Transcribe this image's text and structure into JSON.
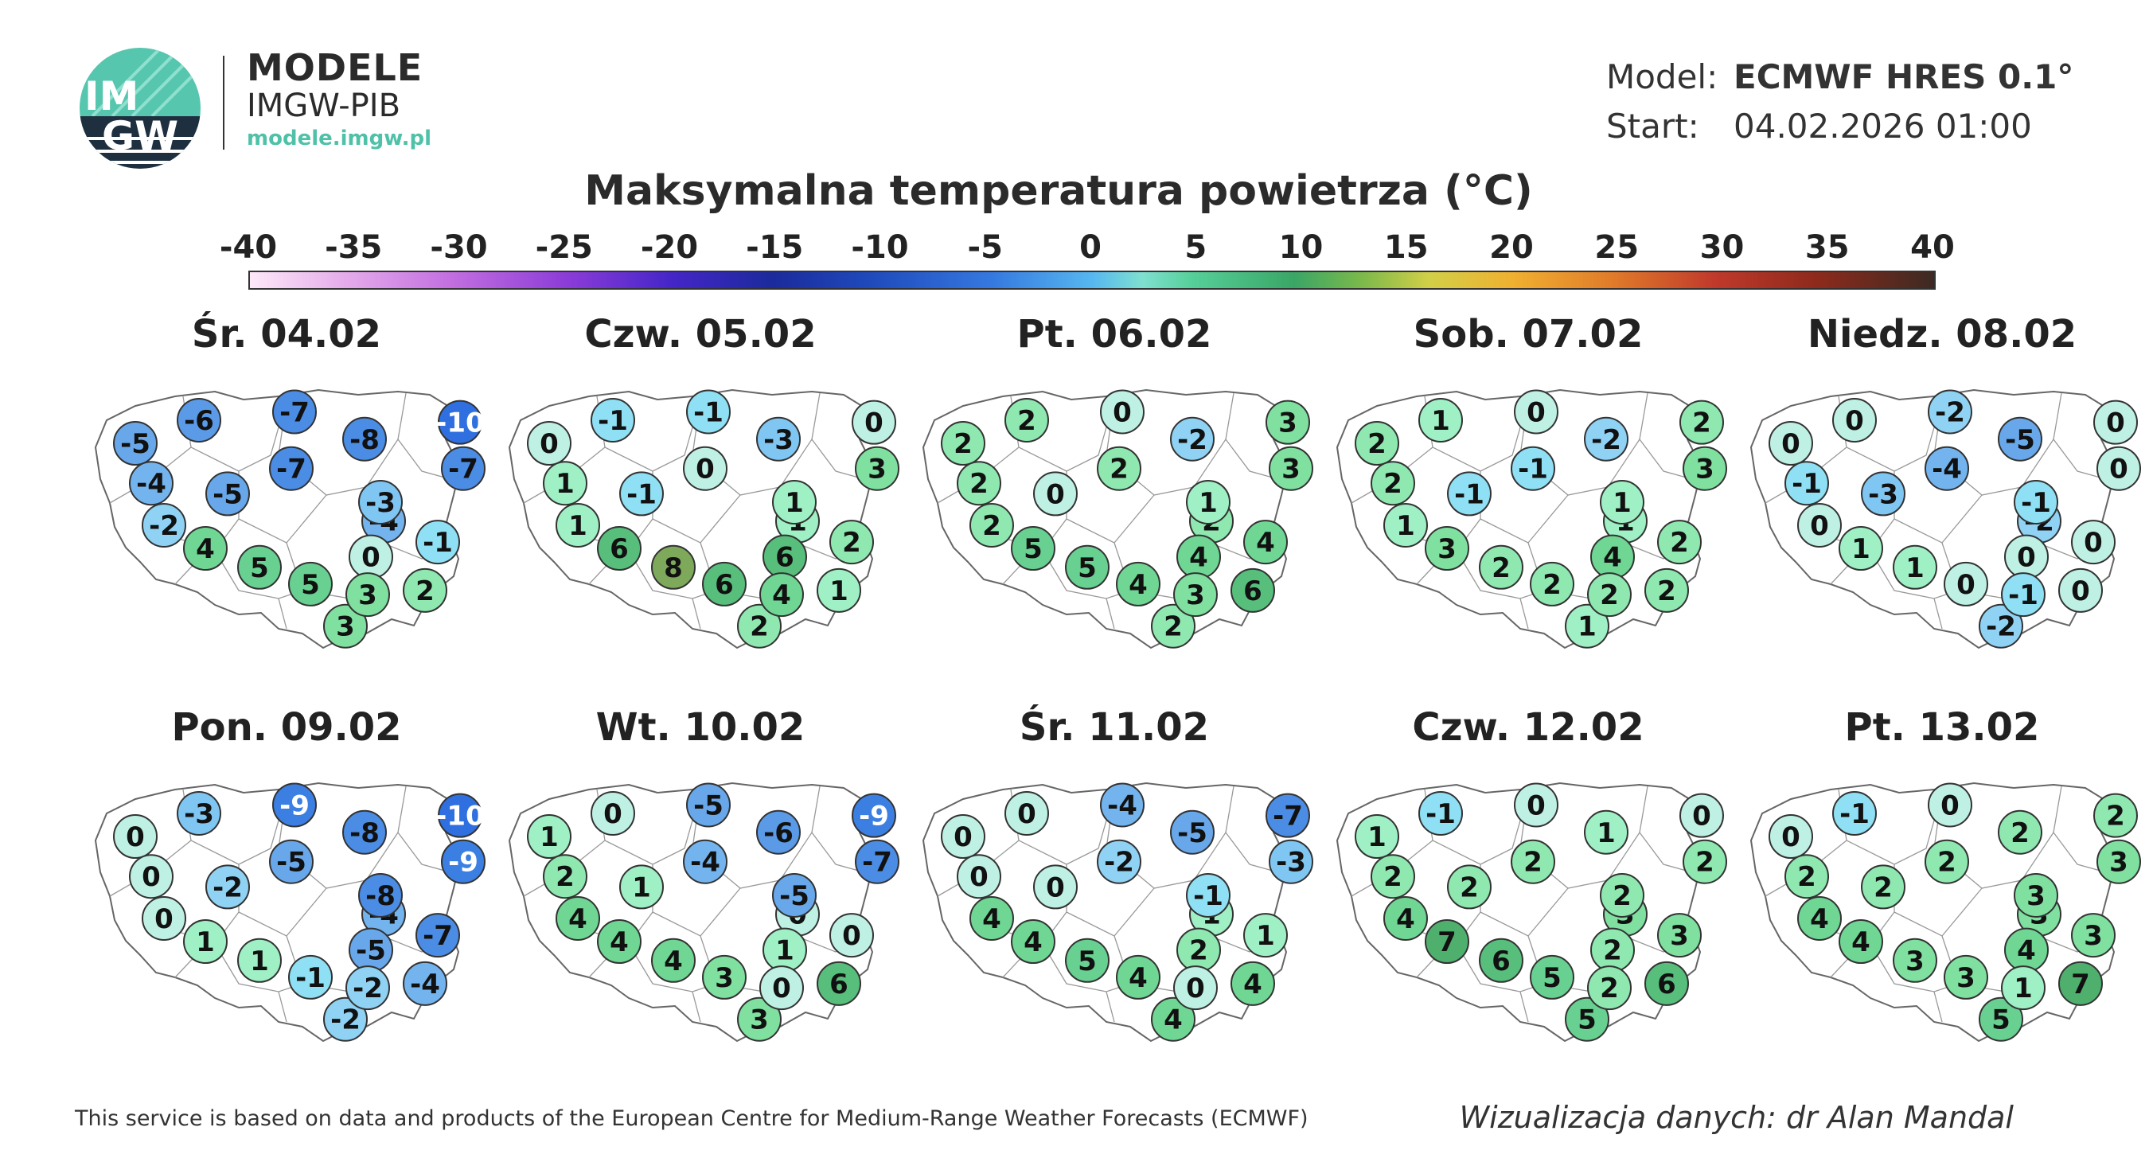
{
  "brand": {
    "logo_text_top": "IM",
    "logo_text_bottom": "GW",
    "name_line1": "MODELE",
    "name_line2": "IMGW-PIB",
    "url": "modele.imgw.pl"
  },
  "model_info": {
    "model_label": "Model:",
    "model_value": "ECMWF HRES 0.1°",
    "start_label": "Start:",
    "start_value": "04.02.2026 01:00"
  },
  "title": "Maksymalna temperatura powietrza (°C)",
  "scale": {
    "ticks": [
      "-40",
      "-35",
      "-30",
      "-25",
      "-20",
      "-15",
      "-10",
      "-5",
      "0",
      "5",
      "10",
      "15",
      "20",
      "25",
      "30",
      "35",
      "40"
    ],
    "min": -40,
    "max": 40
  },
  "colors": {
    "m10": "#2f6fe0",
    "m9": "#3b7fe2",
    "m8": "#4b8ce4",
    "m7": "#4b8ce4",
    "m6": "#5a9ae6",
    "m5": "#68a8ea",
    "m4": "#74b4ee",
    "m3": "#80c6f2",
    "m2": "#8fd2f4",
    "m1": "#8fe0f4",
    "z0": "#bff0e4",
    "p1": "#9ff0c4",
    "p2": "#8ee8b0",
    "p3": "#7fe0a0",
    "p4": "#6fd694",
    "p5": "#68d090",
    "p6": "#58be7c",
    "p7": "#4fb06e",
    "p8": "#7ea95a"
  },
  "days": [
    {
      "title": "Śr. 04.02",
      "values": [
        "-5",
        "-6",
        "-7",
        "-8",
        "-10",
        "-4",
        "-5",
        "-7",
        "-7",
        "-2",
        "-4",
        "-3",
        "4",
        "5",
        "5",
        "0",
        "-1",
        "3",
        "2",
        "3"
      ]
    },
    {
      "title": "Czw. 05.02",
      "values": [
        "0",
        "-1",
        "-1",
        "-3",
        "0",
        "1",
        "-1",
        "0",
        "3",
        "1",
        "1",
        "1",
        "6",
        "8",
        "6",
        "6",
        "2",
        "2",
        "1",
        "4"
      ]
    },
    {
      "title": "Pt. 06.02",
      "values": [
        "2",
        "2",
        "0",
        "-2",
        "3",
        "2",
        "0",
        "2",
        "3",
        "2",
        "2",
        "1",
        "5",
        "5",
        "4",
        "4",
        "4",
        "2",
        "6",
        "3"
      ]
    },
    {
      "title": "Sob. 07.02",
      "values": [
        "2",
        "1",
        "0",
        "-2",
        "2",
        "2",
        "-1",
        "-1",
        "3",
        "1",
        "1",
        "1",
        "3",
        "2",
        "2",
        "4",
        "2",
        "1",
        "2",
        "2"
      ]
    },
    {
      "title": "Niedz. 08.02",
      "values": [
        "0",
        "0",
        "-2",
        "-5",
        "0",
        "-1",
        "-3",
        "-4",
        "0",
        "0",
        "-2",
        "-1",
        "1",
        "1",
        "0",
        "0",
        "0",
        "-2",
        "0",
        "-1"
      ]
    },
    {
      "title": "Pon. 09.02",
      "values": [
        "0",
        "-3",
        "-9",
        "-8",
        "-10",
        "0",
        "-2",
        "-5",
        "-9",
        "0",
        "-4",
        "-8",
        "1",
        "1",
        "-1",
        "-5",
        "-7",
        "-2",
        "-4",
        "-2"
      ]
    },
    {
      "title": "Wt. 10.02",
      "values": [
        "1",
        "0",
        "-5",
        "-6",
        "-9",
        "2",
        "1",
        "-4",
        "-7",
        "4",
        "0",
        "-5",
        "4",
        "4",
        "3",
        "1",
        "0",
        "3",
        "6",
        "0"
      ]
    },
    {
      "title": "Śr. 11.02",
      "values": [
        "0",
        "0",
        "-4",
        "-5",
        "-7",
        "0",
        "0",
        "-2",
        "-3",
        "4",
        "1",
        "-1",
        "4",
        "5",
        "4",
        "2",
        "1",
        "4",
        "4",
        "0"
      ]
    },
    {
      "title": "Czw. 12.02",
      "values": [
        "1",
        "-1",
        "0",
        "1",
        "0",
        "2",
        "2",
        "2",
        "2",
        "4",
        "3",
        "2",
        "7",
        "6",
        "5",
        "2",
        "3",
        "5",
        "6",
        "2"
      ]
    },
    {
      "title": "Pt. 13.02",
      "values": [
        "0",
        "-1",
        "0",
        "2",
        "2",
        "2",
        "2",
        "2",
        "3",
        "4",
        "3",
        "3",
        "4",
        "3",
        "3",
        "4",
        "3",
        "5",
        "7",
        "1"
      ]
    }
  ],
  "footer": {
    "left": "This service is based on data and products of the European Centre for Medium-Range Weather Forecasts (ECMWF)",
    "right": "Wizualizacja danych: dr Alan Mandal"
  }
}
